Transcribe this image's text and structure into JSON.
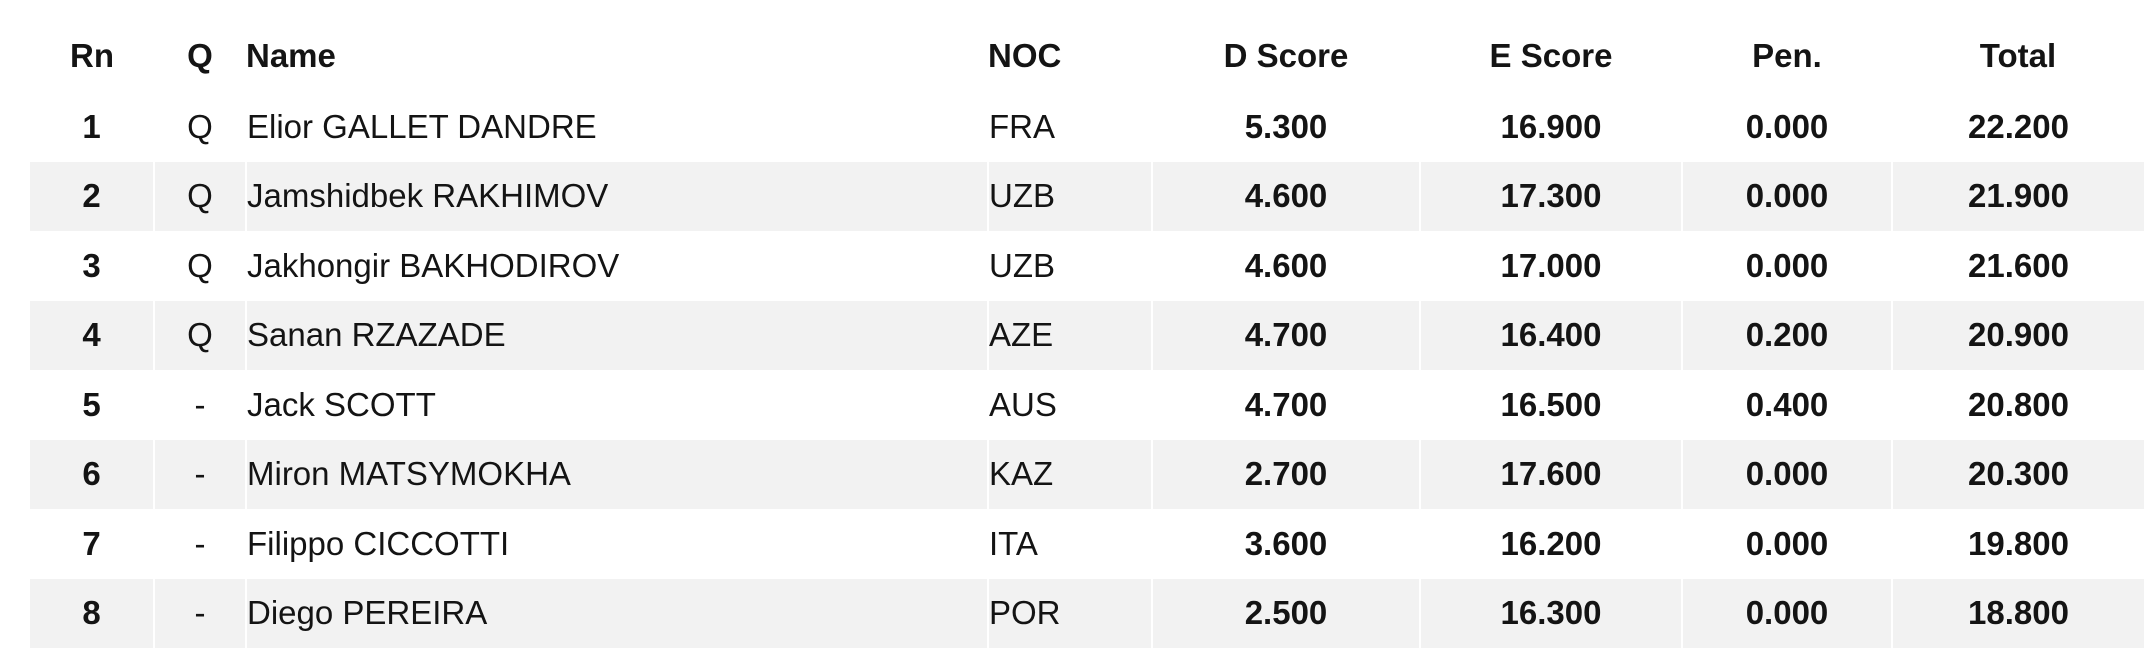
{
  "table": {
    "headers": {
      "rn": "Rn",
      "q": "Q",
      "name": "Name",
      "noc": "NOC",
      "d_score": "D Score",
      "e_score": "E Score",
      "pen": "Pen.",
      "total": "Total"
    },
    "rows": [
      {
        "rn": "1",
        "q": "Q",
        "name": "Elior GALLET DANDRE",
        "noc": "FRA",
        "d_score": "5.300",
        "e_score": "16.900",
        "pen": "0.000",
        "total": "22.200"
      },
      {
        "rn": "2",
        "q": "Q",
        "name": "Jamshidbek RAKHIMOV",
        "noc": "UZB",
        "d_score": "4.600",
        "e_score": "17.300",
        "pen": "0.000",
        "total": "21.900"
      },
      {
        "rn": "3",
        "q": "Q",
        "name": "Jakhongir BAKHODIROV",
        "noc": "UZB",
        "d_score": "4.600",
        "e_score": "17.000",
        "pen": "0.000",
        "total": "21.600"
      },
      {
        "rn": "4",
        "q": "Q",
        "name": "Sanan RZAZADE",
        "noc": "AZE",
        "d_score": "4.700",
        "e_score": "16.400",
        "pen": "0.200",
        "total": "20.900"
      },
      {
        "rn": "5",
        "q": "-",
        "name": "Jack SCOTT",
        "noc": "AUS",
        "d_score": "4.700",
        "e_score": "16.500",
        "pen": "0.400",
        "total": "20.800"
      },
      {
        "rn": "6",
        "q": "-",
        "name": "Miron MATSYMOKHA",
        "noc": "KAZ",
        "d_score": "2.700",
        "e_score": "17.600",
        "pen": "0.000",
        "total": "20.300"
      },
      {
        "rn": "7",
        "q": "-",
        "name": "Filippo CICCOTTI",
        "noc": "ITA",
        "d_score": "3.600",
        "e_score": "16.200",
        "pen": "0.000",
        "total": "19.800"
      },
      {
        "rn": "8",
        "q": "-",
        "name": "Diego PEREIRA",
        "noc": "POR",
        "d_score": "2.500",
        "e_score": "16.300",
        "pen": "0.000",
        "total": "18.800"
      }
    ]
  },
  "colors": {
    "stripe": "#f2f2f2",
    "text": "#141414",
    "background": "#ffffff"
  }
}
